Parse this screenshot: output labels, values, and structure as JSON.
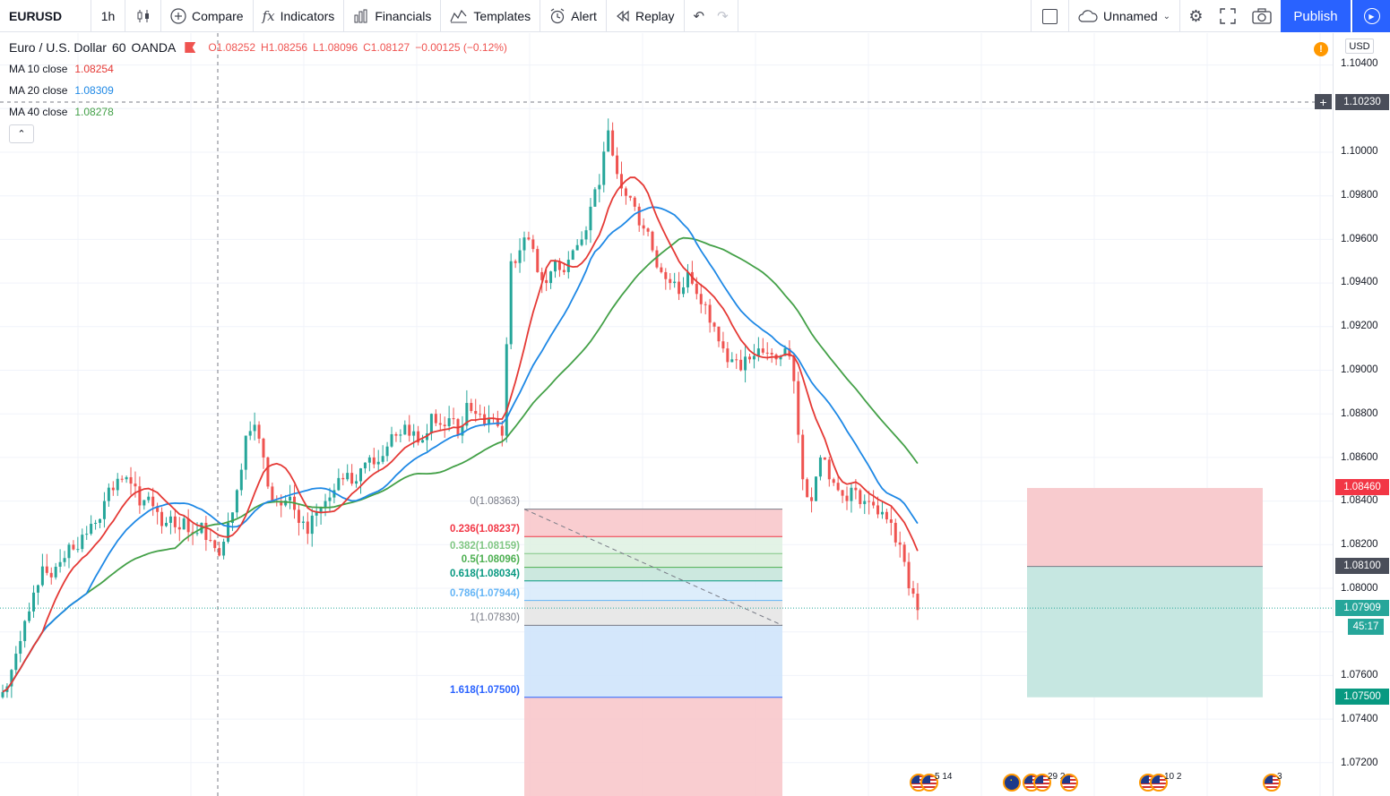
{
  "toolbar": {
    "symbol": "EURUSD",
    "interval": "1h",
    "compare": "Compare",
    "indicators": "Indicators",
    "financials": "Financials",
    "templates": "Templates",
    "alert": "Alert",
    "replay": "Replay",
    "layout_name": "Unnamed",
    "publish": "Publish"
  },
  "legend": {
    "title": "Euro / U.S. Dollar",
    "interval": "60",
    "source": "OANDA",
    "open": "O1.08252",
    "high": "H1.08256",
    "low": "L1.08096",
    "close": "C1.08127",
    "change": "−0.00125 (−0.12%)",
    "change_color": "#ef5350"
  },
  "indicators": [
    {
      "label": "MA 10 close",
      "value": "1.08254",
      "color": "#e53935"
    },
    {
      "label": "MA 20 close",
      "value": "1.08309",
      "color": "#1e88e5"
    },
    {
      "label": "MA 40 close",
      "value": "1.08278",
      "color": "#43a047"
    }
  ],
  "price_axis": {
    "currency": "USD",
    "ticks": [
      "1.10400",
      "1.10000",
      "1.09800",
      "1.09600",
      "1.09400",
      "1.09200",
      "1.09000",
      "1.08800",
      "1.08600",
      "1.08400",
      "1.08200",
      "1.08000",
      "1.07600",
      "1.07400",
      "1.07200"
    ],
    "crosshair_price": "1.10230",
    "stop_price": "1.08460",
    "entry_price": "1.08100",
    "last_price": "1.07909",
    "countdown": "45:17",
    "target_price": "1.07500"
  },
  "fib_levels": [
    {
      "label": "0(1.08363)",
      "color": "#787b86"
    },
    {
      "label": "0.236(1.08237)",
      "color": "#f23645"
    },
    {
      "label": "0.382(1.08159)",
      "color": "#81c784"
    },
    {
      "label": "0.5(1.08096)",
      "color": "#4caf50"
    },
    {
      "label": "0.618(1.08034)",
      "color": "#089981"
    },
    {
      "label": "0.786(1.07944)",
      "color": "#64b5f6"
    },
    {
      "label": "1(1.07830)",
      "color": "#787b86"
    },
    {
      "label": "1.618(1.07500)",
      "color": "#2962ff"
    }
  ],
  "events": [
    {
      "flags": [
        "us",
        "us"
      ],
      "count": "5 14"
    },
    {
      "flags": [
        "eu",
        "us",
        "us"
      ],
      "count": "29 2"
    },
    {
      "flags": [
        "us"
      ],
      "count": ""
    },
    {
      "flags": [
        "us",
        "us"
      ],
      "count": "10 2"
    },
    {
      "flags": [
        "us"
      ],
      "count": "3"
    }
  ],
  "colors": {
    "up": "#26a69a",
    "down": "#ef5350",
    "ma10": "#e53935",
    "ma20": "#1e88e5",
    "ma40": "#43a047",
    "accent": "#2962ff"
  },
  "chart_data": {
    "type": "candlestick",
    "symbol": "EURUSD",
    "timeframe": "60",
    "ylim": [
      1.0715,
      1.1055
    ],
    "close_series_approx": [
      1.0755,
      1.077,
      1.0785,
      1.0798,
      1.081,
      1.0805,
      1.0812,
      1.082,
      1.0818,
      1.0825,
      1.083,
      1.084,
      1.0845,
      1.085,
      1.0848,
      1.0838,
      1.0842,
      1.0835,
      1.083,
      1.0828,
      1.0832,
      1.0825,
      1.083,
      1.0822,
      1.0815,
      1.083,
      1.0845,
      1.087,
      1.0875,
      1.086,
      1.084,
      1.0838,
      1.0842,
      1.083,
      1.0825,
      1.0835,
      1.084,
      1.0845,
      1.085,
      1.0848,
      1.0855,
      1.086,
      1.0858,
      1.0865,
      1.087,
      1.0875,
      1.0872,
      1.0868,
      1.088,
      1.0875,
      1.0878,
      1.087,
      1.0885,
      1.088,
      1.0875,
      1.0878,
      1.087,
      1.095,
      1.0955,
      1.096,
      1.0945,
      1.094,
      1.095,
      1.0945,
      1.0955,
      1.096,
      1.0975,
      1.0985,
      1.101,
      1.099,
      1.098,
      1.0975,
      1.0965,
      1.0955,
      1.0945,
      1.094,
      1.0935,
      1.0945,
      1.0935,
      1.093,
      1.092,
      1.091,
      1.0905,
      1.09,
      1.0905,
      1.091,
      1.0908,
      1.0905,
      1.091,
      1.0895,
      1.085,
      1.084,
      1.086,
      1.085,
      1.0845,
      1.084,
      1.0845,
      1.084,
      1.0838,
      1.0835,
      1.083,
      1.082,
      1.08,
      1.079
    ],
    "fibonacci": [
      {
        "level": 0,
        "price": 1.08363
      },
      {
        "level": 0.236,
        "price": 1.08237
      },
      {
        "level": 0.382,
        "price": 1.08159
      },
      {
        "level": 0.5,
        "price": 1.08096
      },
      {
        "level": 0.618,
        "price": 1.08034
      },
      {
        "level": 0.786,
        "price": 1.07944
      },
      {
        "level": 1,
        "price": 1.0783
      },
      {
        "level": 1.618,
        "price": 1.075
      }
    ],
    "short_position": {
      "stop": 1.0846,
      "entry": 1.081,
      "target": 1.075
    }
  }
}
